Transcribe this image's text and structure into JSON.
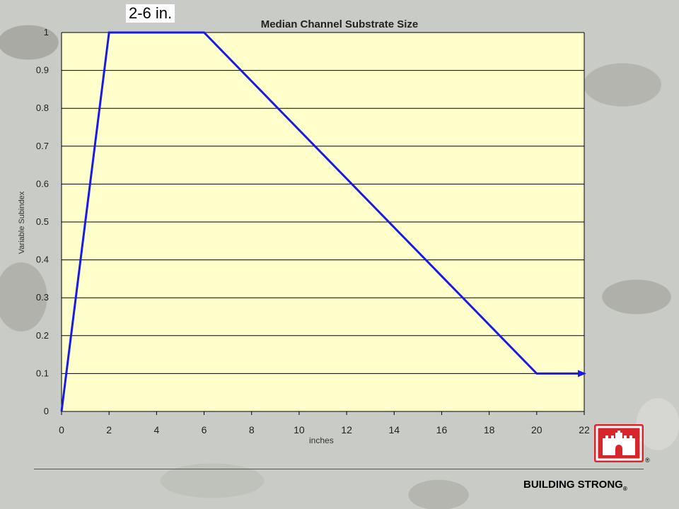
{
  "annotation": "2-6 in.",
  "footer": {
    "brand": "BUILDING STRONG",
    "registered": "®"
  },
  "logo": {
    "icon": "castle-icon",
    "registered": "®",
    "color": "#d8242b"
  },
  "colors": {
    "plot_bg": "#ffffcc",
    "line": "#1a1ae6",
    "grid": "#000000"
  },
  "chart_data": {
    "type": "line",
    "title": "Median Channel Substrate Size",
    "xlabel": "inches",
    "ylabel": "Variable Subindex",
    "xlim": [
      0,
      22
    ],
    "ylim": [
      0,
      1
    ],
    "x_ticks": [
      "0",
      "2",
      "4",
      "6",
      "8",
      "10",
      "12",
      "14",
      "16",
      "18",
      "20",
      "22"
    ],
    "y_ticks": [
      "0",
      "0.1",
      "0.2",
      "0.3",
      "0.4",
      "0.5",
      "0.6",
      "0.7",
      "0.8",
      "0.9",
      "1"
    ],
    "grid": "horizontal",
    "series": [
      {
        "x": [
          0,
          2,
          6,
          20,
          22
        ],
        "y": [
          0,
          1,
          1,
          0.1,
          0.1
        ],
        "arrow_end": true
      }
    ]
  }
}
